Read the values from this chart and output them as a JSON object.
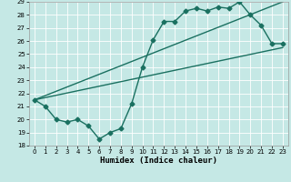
{
  "xlabel": "Humidex (Indice chaleur)",
  "bg_color": "#c5e8e5",
  "line_color": "#1a7060",
  "xlim": [
    -0.5,
    23.5
  ],
  "ylim": [
    18,
    29
  ],
  "yticks": [
    18,
    19,
    20,
    21,
    22,
    23,
    24,
    25,
    26,
    27,
    28,
    29
  ],
  "xticks": [
    0,
    1,
    2,
    3,
    4,
    5,
    6,
    7,
    8,
    9,
    10,
    11,
    12,
    13,
    14,
    15,
    16,
    17,
    18,
    19,
    20,
    21,
    22,
    23
  ],
  "line1_x": [
    0,
    1,
    2,
    3,
    4,
    5,
    6,
    7,
    8,
    9,
    10,
    11,
    12,
    13,
    14,
    15,
    16,
    17,
    18,
    19,
    20,
    21,
    22,
    23
  ],
  "line1_y": [
    21.5,
    21.0,
    20.0,
    19.8,
    20.0,
    19.5,
    18.5,
    19.0,
    19.3,
    21.2,
    24.0,
    26.1,
    27.5,
    27.5,
    28.3,
    28.5,
    28.3,
    28.6,
    28.5,
    29.0,
    28.0,
    27.2,
    25.8,
    25.8
  ],
  "line2_x": [
    0,
    23
  ],
  "line2_y": [
    21.5,
    25.5
  ],
  "line3_x": [
    0,
    23
  ],
  "line3_y": [
    21.5,
    29.0
  ],
  "marker": "D",
  "marker_size": 2.5,
  "linewidth": 1.0
}
